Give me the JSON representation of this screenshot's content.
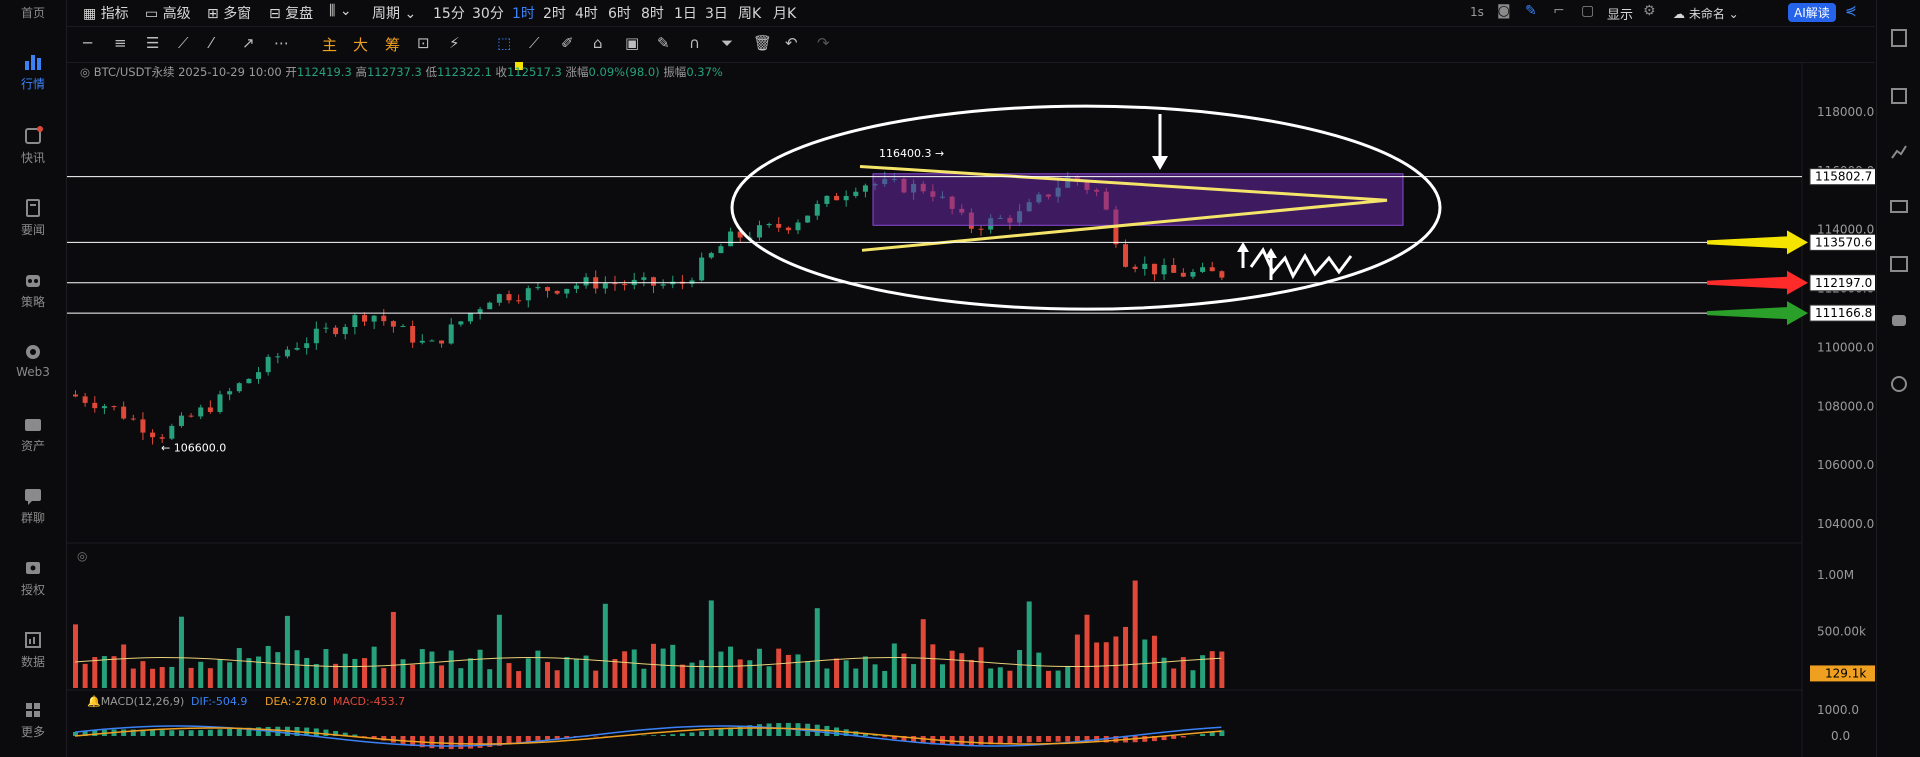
{
  "sidebar": {
    "items": [
      {
        "label": "首页",
        "icon": "home-icon"
      },
      {
        "label": "行情",
        "icon": "chart-bar-icon",
        "active": true
      },
      {
        "label": "快讯",
        "icon": "news-icon"
      },
      {
        "label": "要闻",
        "icon": "document-icon"
      },
      {
        "label": "策略",
        "icon": "robot-icon"
      },
      {
        "label": "Web3",
        "icon": "web3-icon"
      },
      {
        "label": "资产",
        "icon": "wallet-icon"
      },
      {
        "label": "群聊",
        "icon": "chat-icon"
      },
      {
        "label": "授权",
        "icon": "key-icon"
      },
      {
        "label": "数据",
        "icon": "data-icon"
      },
      {
        "label": "更多",
        "icon": "grid-icon"
      }
    ]
  },
  "topbar": {
    "indicators_label": "指标",
    "advanced_label": "高级",
    "multiwindow_label": "多窗",
    "replay_label": "复盘",
    "period_label": "周期",
    "intervals": [
      "15分",
      "30分",
      "1时",
      "2时",
      "4时",
      "6时",
      "8时",
      "1日",
      "3日",
      "周K",
      "月K"
    ],
    "selected_interval": "1时",
    "refresh": "1s",
    "display_label": "显示",
    "unnamed_label": "未命名",
    "ai_label": "AI解读"
  },
  "toolbar2": {
    "main_label": "主",
    "big_label": "大",
    "chip_label": "筹"
  },
  "info": {
    "symbol": "BTC/USDT永续",
    "datetime": "2025-10-29 10:00",
    "open_label": "开",
    "open": "112419.3",
    "high_label": "高",
    "high": "112737.3",
    "low_label": "低",
    "low": "112322.1",
    "close_label": "收",
    "close": "112517.3",
    "change_label": "涨幅",
    "change": "0.09%(98.0)",
    "amplitude_label": "振幅",
    "amplitude": "0.37%"
  },
  "chart_data": {
    "type": "candlestick",
    "price_ticks": [
      "118000.0",
      "116000.0",
      "114000.0",
      "112000.0",
      "110000.0",
      "108000.0",
      "106000.0",
      "104000.0"
    ],
    "price_values": [
      118000,
      116000,
      114000,
      112000,
      110000,
      108000,
      106000,
      104000
    ],
    "horizontal_levels": [
      {
        "value": 115802.7,
        "label": "115802.7",
        "box": "#ffffff"
      },
      {
        "value": 113570.6,
        "label": "113570.6",
        "box": "#ffffff",
        "arrow": "#f5e400"
      },
      {
        "value": 112197.0,
        "label": "112197.0",
        "box": "#ffffff",
        "arrow": "#ff2a2a"
      },
      {
        "value": 111166.8,
        "label": "111166.8",
        "box": "#ffffff",
        "arrow": "#2aa02a"
      }
    ],
    "high_marker": {
      "value": 116400.3,
      "label": "116400.3"
    },
    "low_marker": {
      "value": 106600.0,
      "label": "106600.0"
    },
    "volume_ticks": [
      "1.00M",
      "500.00k"
    ],
    "volume_current": "129.1k",
    "macd": {
      "label": "MACD(12,26,9)",
      "dif": "DIF:-504.9",
      "dea": "DEA:-278.0",
      "macd": "MACD:-453.7",
      "ticks": [
        "1000.0",
        "0.0"
      ]
    },
    "colors": {
      "up": "#26a17b",
      "down": "#e0493a",
      "box": "#6a2aa8",
      "triangle": "#f5e46a",
      "ellipse": "#ffffff"
    }
  }
}
